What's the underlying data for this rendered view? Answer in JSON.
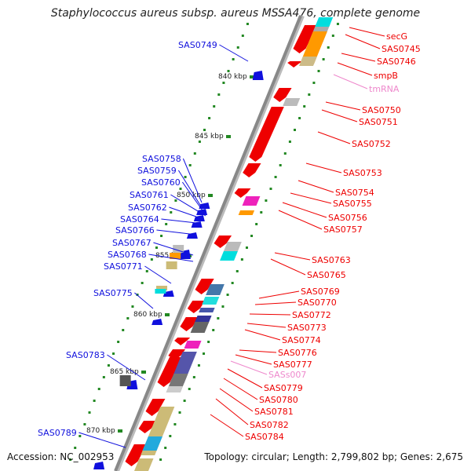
{
  "title": "Staphylococcus aureus subsp. aureus MSSA476, complete genome",
  "footer": {
    "accession": "Accession: NC_002953",
    "topology": "Topology: circular; Length: 2,799,802 bp; Genes: 2,675"
  },
  "colors": {
    "forward_label": "#ee0000",
    "reverse_label": "#1010dd",
    "rna_label": "#ee88cc",
    "backbone": "#888888",
    "tick": "#228822"
  },
  "scale_labels": [
    "840 kbp",
    "845 kbp",
    "850 kbp",
    "855 kbp",
    "860 kbp",
    "865 kbp",
    "870 kbp"
  ],
  "left_labels": [
    "SAS0749",
    "SAS0758",
    "SAS0759",
    "SAS0760",
    "SAS0761",
    "SAS0762",
    "SAS0764",
    "SAS0766",
    "SAS0767",
    "SAS0768",
    "SAS0771",
    "SAS0775",
    "SAS0783",
    "SAS0789"
  ],
  "right_labels": [
    {
      "text": "secG",
      "type": "gene"
    },
    {
      "text": "SAS0745",
      "type": "gene"
    },
    {
      "text": "SAS0746",
      "type": "gene"
    },
    {
      "text": "smpB",
      "type": "gene"
    },
    {
      "text": "tmRNA",
      "type": "rna"
    },
    {
      "text": "SAS0750",
      "type": "gene"
    },
    {
      "text": "SAS0751",
      "type": "gene"
    },
    {
      "text": "SAS0752",
      "type": "gene"
    },
    {
      "text": "SAS0753",
      "type": "gene"
    },
    {
      "text": "SAS0754",
      "type": "gene"
    },
    {
      "text": "SAS0755",
      "type": "gene"
    },
    {
      "text": "SAS0756",
      "type": "gene"
    },
    {
      "text": "SAS0757",
      "type": "gene"
    },
    {
      "text": "SAS0763",
      "type": "gene"
    },
    {
      "text": "SAS0765",
      "type": "gene"
    },
    {
      "text": "SAS0769",
      "type": "gene"
    },
    {
      "text": "SAS0770",
      "type": "gene"
    },
    {
      "text": "SAS0772",
      "type": "gene"
    },
    {
      "text": "SAS0773",
      "type": "gene"
    },
    {
      "text": "SAS0774",
      "type": "gene"
    },
    {
      "text": "SAS0776",
      "type": "gene"
    },
    {
      "text": "SAS0777",
      "type": "gene"
    },
    {
      "text": "SASs007",
      "type": "rna"
    },
    {
      "text": "SAS0779",
      "type": "gene"
    },
    {
      "text": "SAS0780",
      "type": "gene"
    },
    {
      "text": "SAS0781",
      "type": "gene"
    },
    {
      "text": "SAS0782",
      "type": "gene"
    },
    {
      "text": "SAS0784",
      "type": "gene"
    }
  ]
}
